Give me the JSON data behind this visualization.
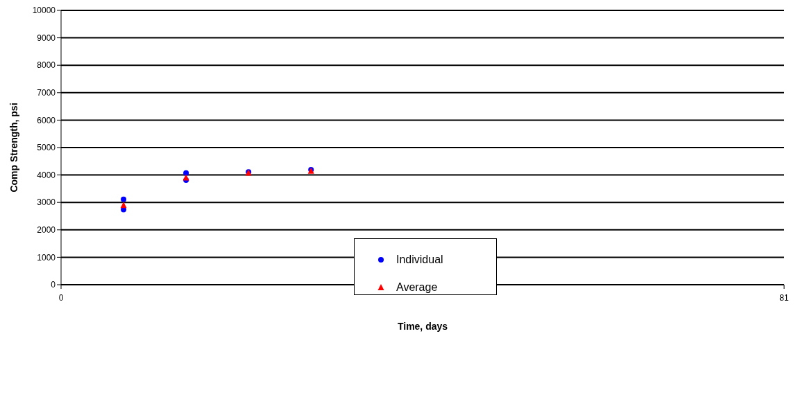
{
  "chart_data": {
    "type": "scatter",
    "xlabel": "Time, days",
    "ylabel": "Comp Strength, psi",
    "xlim": [
      0,
      81
    ],
    "xticks": [
      0,
      81
    ],
    "ylim": [
      0,
      10000
    ],
    "yticks": [
      0,
      1000,
      2000,
      3000,
      4000,
      5000,
      6000,
      7000,
      8000,
      9000,
      10000
    ],
    "grid": "y",
    "legend": "center",
    "series": [
      {
        "name": "Individual",
        "color": "#0000ff",
        "marker": "circle",
        "x": [
          7,
          7,
          14,
          14,
          21,
          28
        ],
        "values": [
          3110,
          2740,
          4070,
          3810,
          4110,
          4190
        ]
      },
      {
        "name": "Average",
        "color": "#ff0000",
        "marker": "triangle",
        "x": [
          7,
          14,
          21,
          28
        ],
        "values": [
          2900,
          3900,
          4080,
          4150
        ]
      }
    ]
  }
}
